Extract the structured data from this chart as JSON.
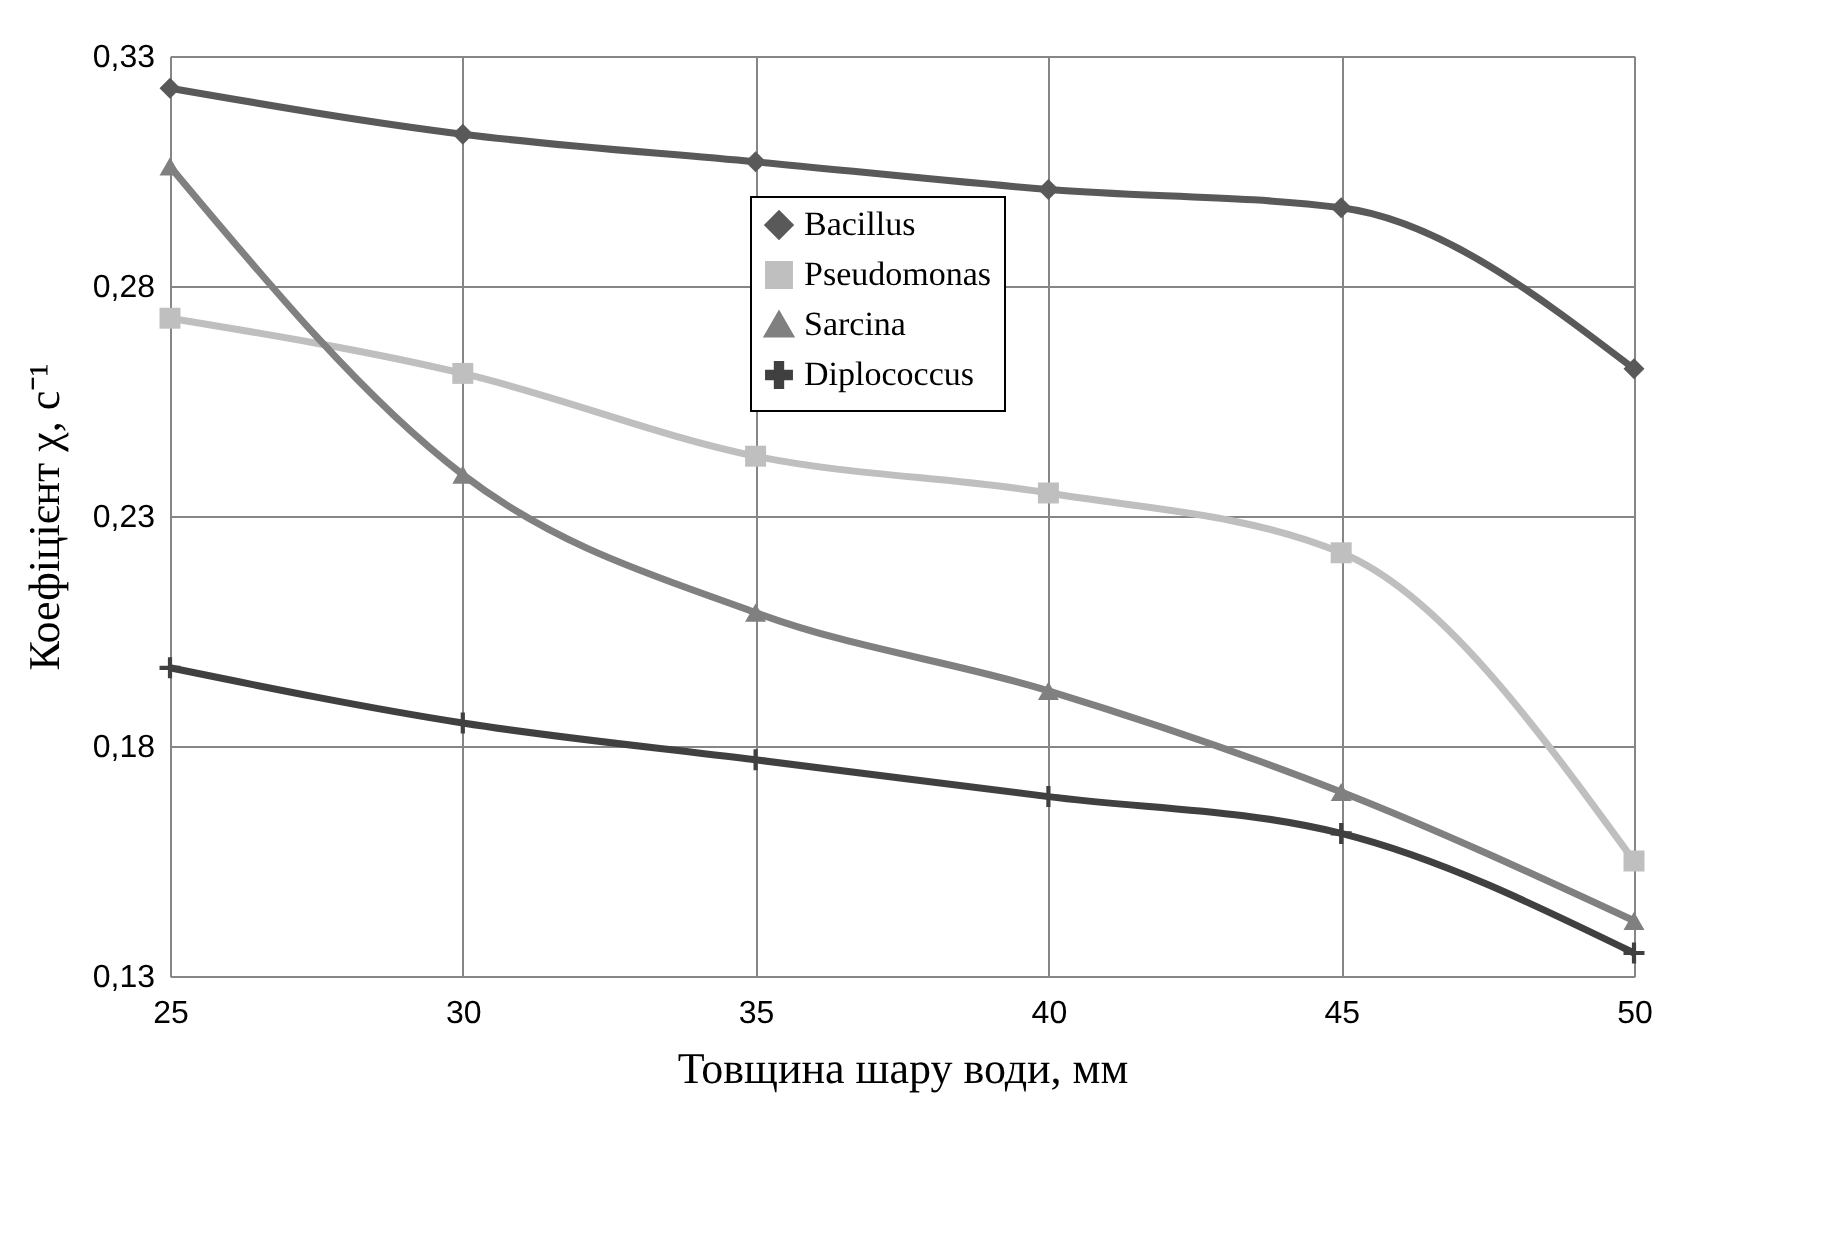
{
  "chart_data": {
    "type": "line",
    "xlabel": "Товщина шару води, мм",
    "ylabel": "Коефіцієнт  χ, с⁻¹",
    "x": [
      25,
      30,
      35,
      40,
      45,
      50
    ],
    "xlim": [
      25,
      50
    ],
    "xticks": [
      25,
      30,
      35,
      40,
      45,
      50
    ],
    "ylim": [
      0.13,
      0.33
    ],
    "yticks": [
      {
        "value": 0.13,
        "label": "0,13"
      },
      {
        "value": 0.18,
        "label": "0,18"
      },
      {
        "value": 0.23,
        "label": "0,23"
      },
      {
        "value": 0.28,
        "label": "0,28"
      },
      {
        "value": 0.33,
        "label": "0,33"
      }
    ],
    "grid": true,
    "legend": "top",
    "line_style": "solid",
    "series": [
      {
        "name": "Bacillus",
        "color": "#595959",
        "marker": "diamond",
        "values": [
          0.323,
          0.313,
          0.307,
          0.301,
          0.297,
          0.262
        ]
      },
      {
        "name": "Pseudomonas",
        "color": "#bfbfbf",
        "marker": "square",
        "values": [
          0.273,
          0.261,
          0.243,
          0.235,
          0.222,
          0.155
        ]
      },
      {
        "name": "Sarcina",
        "color": "#808080",
        "marker": "triangle",
        "values": [
          0.306,
          0.239,
          0.209,
          0.192,
          0.17,
          0.142
        ]
      },
      {
        "name": "Diplococcus",
        "color": "#404040",
        "marker": "cross",
        "values": [
          0.197,
          0.185,
          0.177,
          0.169,
          0.161,
          0.135
        ]
      }
    ]
  }
}
